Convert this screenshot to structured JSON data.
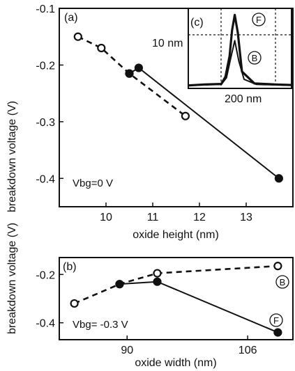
{
  "colors": {
    "ink": "#111111",
    "background": "#ffffff"
  },
  "chart_data": [
    {
      "panel": "(a)",
      "type": "line",
      "xlabel": "oxide height (nm)",
      "ylabel": "breakdown voltage (V)",
      "xlim": [
        9.0,
        14.0
      ],
      "ylim": [
        -0.45,
        -0.1
      ],
      "xticks": [
        "10",
        "11",
        "12",
        "13"
      ],
      "yticks": [
        "-0.1",
        "-0.2",
        "-0.3",
        "-0.4"
      ],
      "annotation": "Vbg=0 V",
      "grid": false,
      "series": [
        {
          "style": "dashed, open circles",
          "x": [
            9.4,
            9.9,
            10.5,
            11.7
          ],
          "y": [
            -0.15,
            -0.17,
            -0.215,
            -0.29
          ]
        },
        {
          "style": "solid, filled circles",
          "x": [
            10.5,
            10.7,
            13.7
          ],
          "y": [
            -0.215,
            -0.205,
            -0.4
          ]
        }
      ]
    },
    {
      "panel": "(b)",
      "type": "line",
      "xlabel": "oxide width (nm)",
      "ylabel": "breakdown voltage (V)",
      "xlim": [
        81,
        112
      ],
      "ylim": [
        -0.47,
        -0.13
      ],
      "xticks": [
        "90",
        "106"
      ],
      "yticks": [
        "-0.2",
        "-0.4"
      ],
      "annotation": "Vbg= -0.3 V",
      "grid": false,
      "series": [
        {
          "name": "B",
          "style": "dashed, open circles",
          "x": [
            83,
            89,
            94,
            110
          ],
          "y": [
            -0.32,
            -0.24,
            -0.195,
            -0.165
          ]
        },
        {
          "name": "F",
          "style": "solid, filled circles",
          "x": [
            89,
            94,
            110
          ],
          "y": [
            -0.24,
            -0.23,
            -0.44
          ]
        }
      ]
    },
    {
      "panel": "(c)",
      "type": "line",
      "inset": true,
      "ylabel_tick": "10 nm",
      "xlabel_tick": "200 nm",
      "xlim": [
        0,
        500
      ],
      "ylim": [
        0,
        15
      ],
      "grid": true,
      "series": [
        {
          "name": "F",
          "style": "thick solid",
          "x": [
            0,
            80,
            160,
            180,
            200,
            212,
            225,
            240,
            260,
            320,
            420,
            500
          ],
          "y": [
            0.3,
            0.5,
            0.6,
            2.0,
            6.0,
            11.0,
            14.0,
            10.5,
            3.0,
            0.7,
            0.5,
            0.4
          ]
        },
        {
          "name": "B",
          "style": "solid",
          "x": [
            0,
            80,
            160,
            185,
            205,
            225,
            245,
            270,
            330,
            420,
            500
          ],
          "y": [
            0.3,
            0.4,
            0.5,
            1.8,
            5.5,
            9.0,
            5.0,
            1.5,
            0.5,
            0.4,
            0.3
          ]
        }
      ]
    }
  ]
}
